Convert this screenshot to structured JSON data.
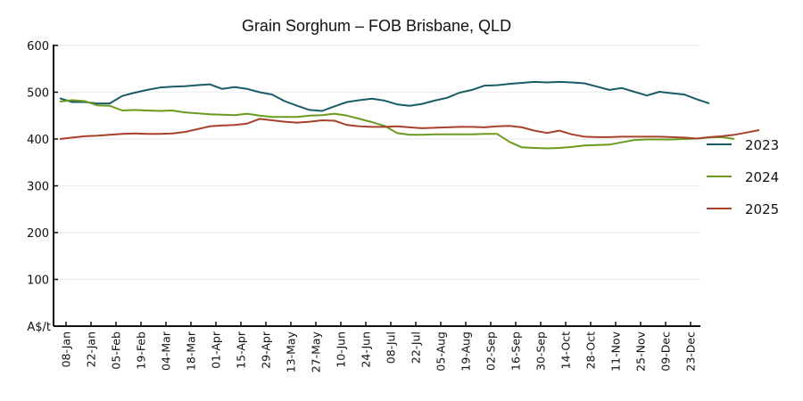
{
  "chart_data": {
    "type": "line",
    "title": "Grain Sorghum – FOB Brisbane, QLD",
    "xlabel": "",
    "ylabel": "A$/t",
    "ylim": [
      0,
      600
    ],
    "yticks": [
      600,
      500,
      400,
      300,
      200,
      100
    ],
    "grid": true,
    "legend_position": "right",
    "x_tick_labels": [
      "08-Jan",
      "22-Jan",
      "05-Feb",
      "19-Feb",
      "04-Mar",
      "18-Mar",
      "01-Apr",
      "15-Apr",
      "29-Apr",
      "13-May",
      "27-May",
      "10-Jun",
      "24-Jun",
      "08-Jul",
      "22-Jul",
      "05-Aug",
      "19-Aug",
      "02-Sep",
      "16-Sep",
      "30-Sep",
      "14-Oct",
      "28-Oct",
      "11-Nov",
      "25-Nov",
      "09-Dec",
      "23-Dec"
    ],
    "series": [
      {
        "name": "2023",
        "color": "#1a5c66",
        "values": [
          487,
          479,
          479,
          476,
          476,
          492,
          499,
          505,
          510,
          512,
          513,
          515,
          517,
          507,
          511,
          507,
          500,
          495,
          481,
          471,
          462,
          460,
          470,
          479,
          483,
          486,
          482,
          474,
          471,
          475,
          482,
          488,
          499,
          505,
          514,
          515,
          518,
          520,
          522,
          521,
          522,
          521,
          519,
          512,
          505,
          509,
          501,
          493,
          501,
          498,
          495,
          485,
          476
        ]
      },
      {
        "name": "2024",
        "color": "#6a9a1f",
        "values": [
          480,
          483,
          481,
          472,
          471,
          461,
          462,
          461,
          460,
          461,
          457,
          455,
          453,
          452,
          451,
          454,
          450,
          447,
          447,
          447,
          450,
          451,
          454,
          450,
          443,
          436,
          428,
          413,
          409,
          409,
          410,
          410,
          410,
          410,
          411,
          411,
          394,
          382,
          381,
          380,
          381,
          383,
          386,
          387,
          388,
          393,
          398,
          399,
          399,
          399,
          400,
          401,
          403,
          404,
          400
        ]
      },
      {
        "name": "2025",
        "color": "#a8412b",
        "values": [
          400,
          403,
          406,
          407,
          409,
          411,
          412,
          411,
          411,
          412,
          415,
          421,
          427,
          429,
          430,
          433,
          443,
          440,
          437,
          435,
          437,
          440,
          439,
          430,
          427,
          426,
          426,
          427,
          425,
          423,
          424,
          425,
          426,
          426,
          425,
          427,
          428,
          425,
          418,
          413,
          418,
          410,
          405,
          404,
          404,
          405,
          405,
          405,
          405,
          404,
          403,
          401,
          404,
          406,
          409,
          414,
          419
        ]
      }
    ]
  }
}
